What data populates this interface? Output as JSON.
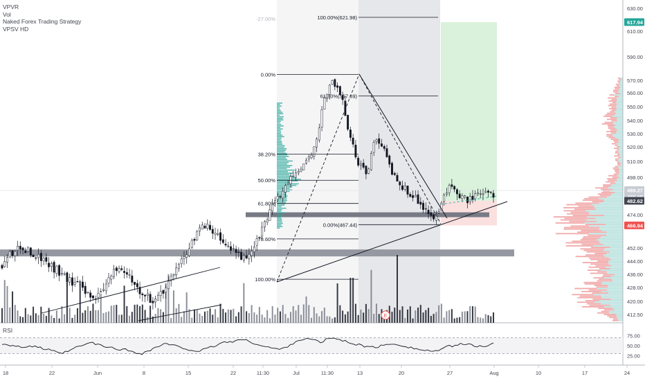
{
  "legend": {
    "indicators": [
      "VPVR",
      "Vol",
      "Naked Forex Trading Strategy",
      "VPSV HD"
    ]
  },
  "rsi": {
    "label": "RSI",
    "ticks": [
      "75.00",
      "50.00",
      "25.00"
    ],
    "levels": [
      70,
      30
    ]
  },
  "price_axis": {
    "ticks": [
      "630.00",
      "610.00",
      "590.00",
      "570.00",
      "560.00",
      "550.00",
      "540.00",
      "530.00",
      "520.00",
      "510.00",
      "498.00",
      "474.00",
      "452.00",
      "444.00",
      "436.00",
      "428.00",
      "420.00",
      "412.50"
    ]
  },
  "badges": [
    {
      "label": "617.94",
      "value": 617.94,
      "color": "#26a69a"
    },
    {
      "label": "489.27",
      "value": 489.27,
      "color": "#c8cbd3"
    },
    {
      "label": "485.05",
      "value": 485.05,
      "color": "#c8cbd3"
    },
    {
      "label": "482.62",
      "value": 482.62,
      "color": "#434651"
    },
    {
      "label": "466.94",
      "value": 466.94,
      "color": "#ef5350"
    }
  ],
  "time_axis": {
    "labels": [
      "18",
      "22",
      "Jun",
      "8",
      "15",
      "22",
      "11:30",
      "Jul",
      "11:30",
      "13",
      "20",
      "27",
      "Aug",
      "10",
      "17",
      "24"
    ]
  },
  "fib_levels": [
    {
      "label": "-27.00%",
      "price": 621.98,
      "style": "faint"
    },
    {
      "label": "100.00%(621.98)",
      "price": 621.98,
      "style": "main"
    },
    {
      "label": "0.00%",
      "price": 575.0,
      "style": "main"
    },
    {
      "label": "61.80%(557.69)",
      "price": 557.69,
      "style": "main"
    },
    {
      "label": "38.20%",
      "price": 515.0,
      "style": "main"
    },
    {
      "label": "50.00%",
      "price": 496.0,
      "style": "main"
    },
    {
      "label": "61.80%",
      "price": 481.0,
      "style": "main"
    },
    {
      "label": "0.00%(467.44)",
      "price": 467.44,
      "style": "main"
    },
    {
      "label": "78.60%",
      "price": 458.0,
      "style": "main"
    },
    {
      "label": "100.00%",
      "price": 433.0,
      "style": "main"
    }
  ],
  "event_marker": {
    "label": "E"
  },
  "colors": {
    "up": "#131722",
    "down": "#131722",
    "profit_zone": "#daf2dc",
    "loss_zone": "#fbe0e0",
    "profile_up": "#b2dfdb",
    "profile_down": "#ef9a9a",
    "zone_bar": "#9598a1"
  },
  "chart_data": {
    "type": "candlestick",
    "series": [
      {
        "name": "price",
        "approx_close_path": [
          442,
          448,
          452,
          451,
          447,
          445,
          440,
          437,
          432,
          430,
          426,
          422,
          428,
          436,
          440,
          436,
          428,
          423,
          420,
          425,
          434,
          444,
          452,
          462,
          468,
          462,
          456,
          452,
          447,
          448,
          455,
          470,
          480,
          488,
          496,
          503,
          510,
          520,
          555,
          570,
          560,
          530,
          510,
          500,
          525,
          520,
          500,
          493,
          488,
          484,
          476,
          470,
          484,
          492,
          485,
          483,
          486,
          488,
          485
        ]
      }
    ],
    "ylim": [
      410,
      635
    ],
    "levels": {
      "take_profit": 617.94,
      "entry": 482.62,
      "stop_loss": 466.94,
      "support_zone_1": 474.0,
      "support_zone_2": 449.0
    },
    "rsi_path": [
      55,
      52,
      48,
      45,
      50,
      42,
      38,
      30,
      35,
      45,
      52,
      58,
      50,
      46,
      42,
      40,
      35,
      30,
      38,
      48,
      55,
      50,
      44,
      40,
      36,
      42,
      50,
      58,
      60,
      65,
      62,
      55,
      48,
      44,
      40,
      50,
      62,
      68,
      64,
      58,
      70,
      66,
      60,
      55,
      50,
      45,
      48,
      52,
      55,
      50,
      45,
      40,
      38,
      35,
      45,
      50,
      55,
      52,
      48,
      50,
      55
    ]
  }
}
